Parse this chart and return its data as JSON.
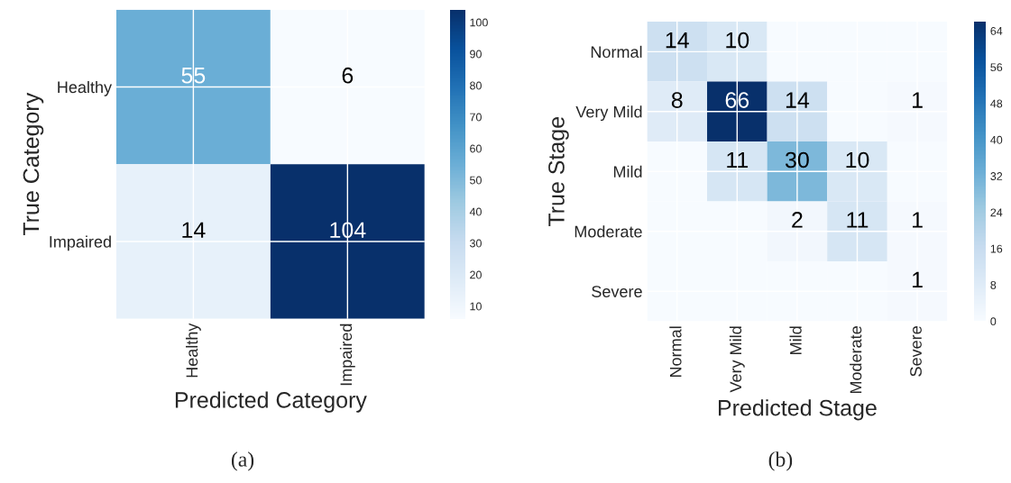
{
  "chart_data": [
    {
      "type": "heatmap",
      "xlabel": "Predicted Category",
      "ylabel": "True Category",
      "categories": [
        "Healthy",
        "Impaired"
      ],
      "y_categories": [
        "Healthy",
        "Impaired"
      ],
      "cells": [
        [
          55,
          6
        ],
        [
          14,
          104
        ]
      ],
      "clim": [
        6,
        104
      ],
      "cticks": [
        10,
        20,
        30,
        40,
        50,
        60,
        70,
        80,
        90,
        100
      ],
      "grid": true,
      "data_labels": true,
      "annotations": [
        "(a)"
      ]
    },
    {
      "type": "heatmap",
      "xlabel": "Predicted Stage",
      "ylabel": "True Stage",
      "categories": [
        "Normal",
        "Very Mild",
        "Mild",
        "Moderate",
        "Severe"
      ],
      "y_categories": [
        "Normal",
        "Very Mild",
        "Mild",
        "Moderate",
        "Severe"
      ],
      "cells": [
        [
          14,
          10,
          0,
          0,
          0
        ],
        [
          8,
          66,
          14,
          0,
          1
        ],
        [
          0,
          11,
          30,
          10,
          0
        ],
        [
          0,
          0,
          2,
          11,
          1
        ],
        [
          0,
          0,
          0,
          0,
          1
        ]
      ],
      "cell_labels": [
        [
          "14",
          "10",
          null,
          null,
          null
        ],
        [
          "8",
          "66",
          "14",
          null,
          "1"
        ],
        [
          null,
          "11",
          "30",
          "10",
          null
        ],
        [
          null,
          null,
          "2",
          "11",
          "1"
        ],
        [
          null,
          null,
          null,
          null,
          "1"
        ]
      ],
      "clim": [
        0,
        66
      ],
      "cticks": [
        0,
        8,
        16,
        24,
        32,
        40,
        48,
        56,
        64
      ],
      "grid": true,
      "annotations": [
        "(b)"
      ]
    }
  ]
}
